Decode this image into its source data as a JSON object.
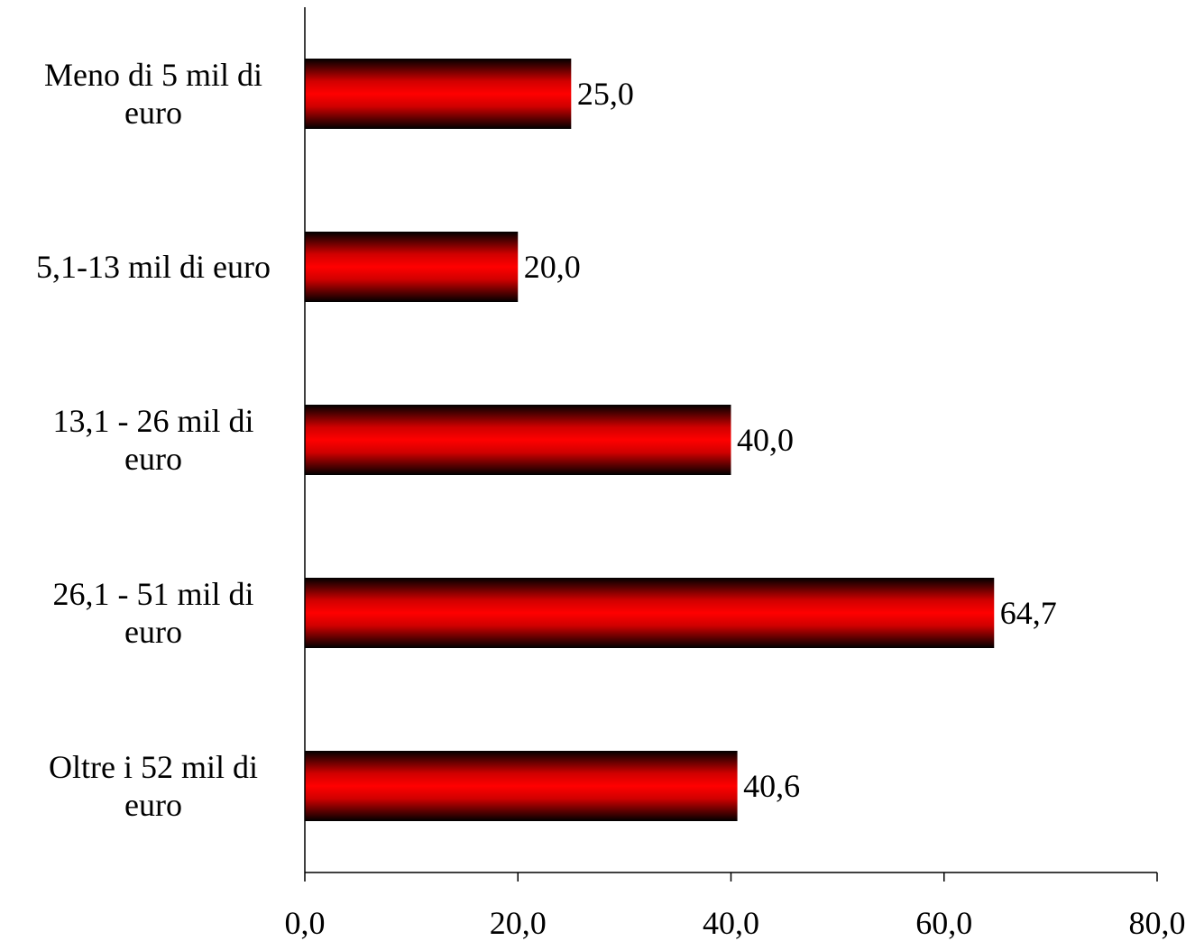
{
  "chart_data": {
    "type": "bar",
    "orientation": "horizontal",
    "title": "",
    "xlabel": "",
    "ylabel": "",
    "categories": [
      [
        "Meno di 5 mil di",
        "euro"
      ],
      [
        "5,1-13 mil di euro"
      ],
      [
        "13,1 - 26 mil di",
        "euro"
      ],
      [
        "26,1 - 51 mil di",
        "euro"
      ],
      [
        "Oltre i 52 mil di",
        "euro"
      ]
    ],
    "values": [
      25.0,
      20.0,
      40.0,
      64.7,
      40.6
    ],
    "value_labels": [
      "25,0",
      "20,0",
      "40,0",
      "64,7",
      "40,6"
    ],
    "xlim": [
      0,
      80
    ],
    "xticks": [
      0,
      20,
      40,
      60,
      80
    ],
    "xtick_labels": [
      "0,0",
      "20,0",
      "40,0",
      "60,0",
      "80,0"
    ],
    "grid": false,
    "legend": "none",
    "colors": {
      "bar_center": "#ff0000",
      "bar_edge": "#000000",
      "axis": "#000000",
      "text": "#000000"
    }
  }
}
